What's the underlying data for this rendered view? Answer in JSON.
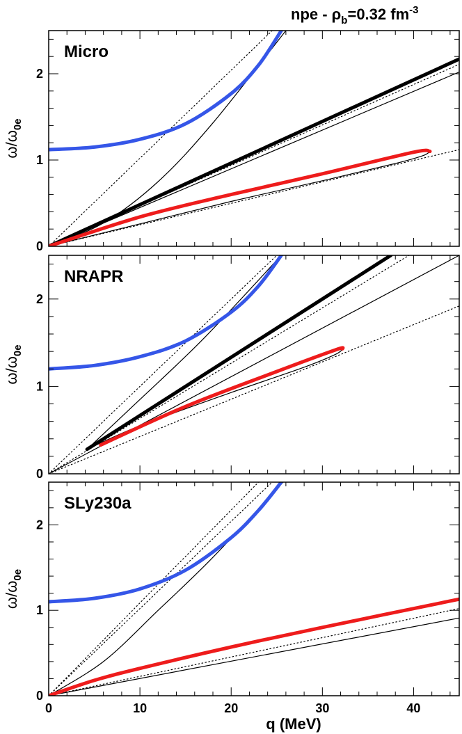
{
  "title": {
    "prefix": "npe -  ",
    "rho_symbol": "ρ",
    "rho_subscript": "b",
    "value": "=0.32 fm",
    "exponent": "-3"
  },
  "xlabel": "q (MeV)",
  "ylabel": {
    "omega": "ω/ω",
    "subscript": "0e"
  },
  "colors": {
    "blue": "#3556e8",
    "red": "#ee1c1c",
    "black": "#000000"
  },
  "chart_data": [
    {
      "type": "line",
      "panel": "Micro",
      "xlim": [
        0,
        45
      ],
      "ylim": [
        0,
        2.5
      ],
      "xticks": [
        0,
        10,
        20,
        30,
        40
      ],
      "yticks": [
        0,
        1,
        2
      ],
      "series": [
        {
          "name": "blue-mode",
          "style": "thick-blue",
          "x": [
            0,
            5,
            10,
            15,
            20,
            23,
            25.5
          ],
          "y": [
            1.12,
            1.15,
            1.24,
            1.42,
            1.77,
            2.1,
            2.5
          ]
        },
        {
          "name": "black-mode",
          "style": "thick-black",
          "x": [
            0,
            45
          ],
          "y": [
            0,
            2.17
          ]
        },
        {
          "name": "red-mode",
          "style": "thick-red",
          "x": [
            0,
            10,
            20,
            30,
            40,
            41.8
          ],
          "y": [
            0,
            0.34,
            0.6,
            0.84,
            1.09,
            1.1
          ]
        },
        {
          "name": "red-closure",
          "style": "thin",
          "x": [
            41.8,
            41,
            38,
            30,
            20,
            10,
            0
          ],
          "y": [
            1.1,
            1.05,
            0.96,
            0.76,
            0.52,
            0.26,
            0
          ]
        },
        {
          "name": "thin-lower",
          "style": "thin",
          "x": [
            0,
            45
          ],
          "y": [
            0,
            2.02
          ]
        },
        {
          "name": "thin-upper",
          "style": "thin",
          "x": [
            0,
            6,
            12,
            18,
            26
          ],
          "y": [
            0,
            0.27,
            0.75,
            1.43,
            2.5
          ]
        },
        {
          "name": "dotted-steep",
          "style": "dotted",
          "x": [
            0,
            24.5
          ],
          "y": [
            0,
            2.5
          ]
        },
        {
          "name": "dotted-mid",
          "style": "dotted",
          "x": [
            0,
            45
          ],
          "y": [
            0,
            2.11
          ]
        },
        {
          "name": "dotted-low",
          "style": "dotted",
          "x": [
            0,
            45
          ],
          "y": [
            0,
            1.12
          ]
        }
      ]
    },
    {
      "type": "line",
      "panel": "NRAPR",
      "xlim": [
        0,
        45
      ],
      "ylim": [
        0,
        2.5
      ],
      "xticks": [
        0,
        10,
        20,
        30,
        40
      ],
      "yticks": [
        0,
        1,
        2
      ],
      "series": [
        {
          "name": "blue-mode",
          "style": "thick-blue",
          "x": [
            0,
            5,
            10,
            15,
            20,
            23,
            25.5
          ],
          "y": [
            1.2,
            1.24,
            1.34,
            1.52,
            1.85,
            2.15,
            2.5
          ]
        },
        {
          "name": "black-mode",
          "style": "thick-black",
          "x": [
            4.2,
            37.5
          ],
          "y": [
            0.28,
            2.5
          ]
        },
        {
          "name": "red-mode",
          "style": "thick-red",
          "x": [
            5.7,
            15,
            25,
            31.5,
            32.2
          ],
          "y": [
            0.33,
            0.77,
            1.17,
            1.42,
            1.43
          ]
        },
        {
          "name": "red-closure",
          "style": "thin",
          "x": [
            32.2,
            31.5,
            28,
            20,
            10,
            4.2
          ],
          "y": [
            1.43,
            1.37,
            1.22,
            0.93,
            0.55,
            0.28
          ]
        },
        {
          "name": "thin-lower",
          "style": "thin",
          "x": [
            0,
            45
          ],
          "y": [
            0,
            2.5
          ]
        },
        {
          "name": "thin-upper",
          "style": "thin",
          "x": [
            4.2,
            10,
            17,
            25.5
          ],
          "y": [
            0.28,
            0.85,
            1.55,
            2.5
          ]
        },
        {
          "name": "dotted-steep",
          "style": "dotted",
          "x": [
            0,
            25
          ],
          "y": [
            0,
            2.5
          ]
        },
        {
          "name": "dotted-mid",
          "style": "dotted",
          "x": [
            0,
            39.5
          ],
          "y": [
            0,
            2.5
          ]
        },
        {
          "name": "dotted-low",
          "style": "dotted",
          "x": [
            0,
            45
          ],
          "y": [
            0,
            1.92
          ]
        }
      ]
    },
    {
      "type": "line",
      "panel": "SLy230a",
      "xlim": [
        0,
        45
      ],
      "ylim": [
        0,
        2.5
      ],
      "xticks": [
        0,
        10,
        20,
        30,
        40
      ],
      "yticks": [
        0,
        1,
        2
      ],
      "series": [
        {
          "name": "blue-mode",
          "style": "thick-blue",
          "x": [
            0,
            5,
            10,
            15,
            20,
            23,
            25.5
          ],
          "y": [
            1.1,
            1.14,
            1.25,
            1.47,
            1.85,
            2.17,
            2.5
          ]
        },
        {
          "name": "red-mode",
          "style": "thick-red",
          "x": [
            0,
            5,
            10,
            20,
            30,
            45
          ],
          "y": [
            0,
            0.18,
            0.32,
            0.57,
            0.8,
            1.13
          ]
        },
        {
          "name": "thin-lower",
          "style": "thin",
          "x": [
            0,
            45
          ],
          "y": [
            0,
            0.91
          ]
        },
        {
          "name": "thin-upper",
          "style": "thin",
          "x": [
            0,
            6,
            12,
            18,
            25.7
          ],
          "y": [
            0,
            0.4,
            1.0,
            1.62,
            2.5
          ]
        },
        {
          "name": "dotted-steep-1",
          "style": "dotted",
          "x": [
            0,
            23
          ],
          "y": [
            0,
            2.5
          ]
        },
        {
          "name": "dotted-steep-2",
          "style": "dotted",
          "x": [
            0,
            24.5
          ],
          "y": [
            0,
            2.5
          ]
        },
        {
          "name": "dotted-low",
          "style": "dotted",
          "x": [
            0,
            45
          ],
          "y": [
            0,
            1.02
          ]
        }
      ]
    }
  ],
  "panel_labels": [
    "Micro",
    "NRAPR",
    "SLy230a"
  ]
}
